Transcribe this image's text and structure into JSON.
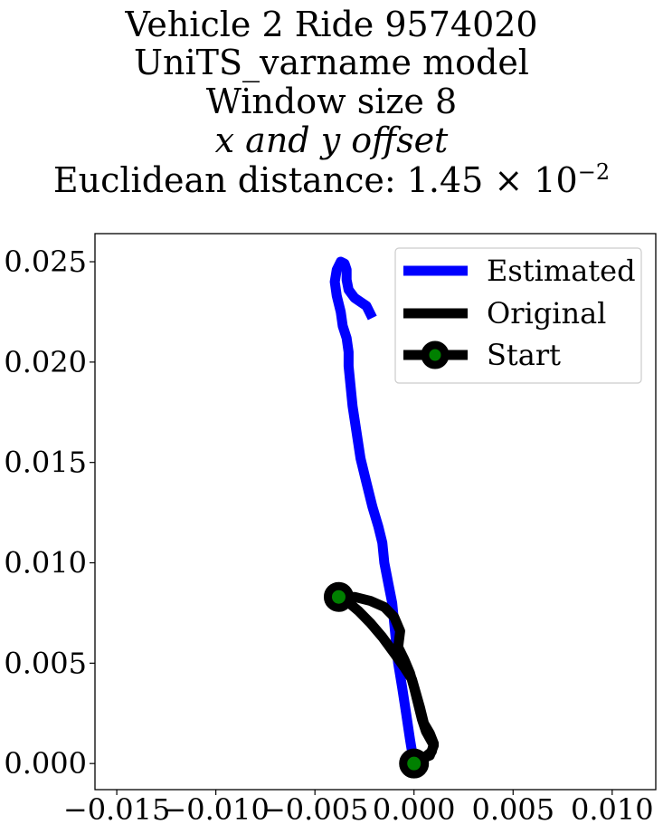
{
  "title_lines": [
    "Vehicle 2 Ride 9574020",
    "UniTS_varname model",
    "Window size 8",
    "x and y offset",
    "Euclidean distance: 1.45 × 10",
    "−2"
  ],
  "chart_data": {
    "type": "line",
    "title": "Vehicle 2 Ride 9574020 UniTS_varname model Window size 8 x and y offset Euclidean distance: 1.45 × 10^−2",
    "xlabel": "",
    "ylabel": "",
    "xlim": [
      -0.0161,
      0.0122
    ],
    "ylim": [
      -0.0013,
      0.0264
    ],
    "x_ticks": [
      -0.015,
      -0.01,
      -0.005,
      0.0,
      0.005,
      0.01
    ],
    "x_tick_labels": [
      "−0.015",
      "−0.010",
      "−0.005",
      "0.000",
      "0.005",
      "0.010"
    ],
    "y_ticks": [
      0.0,
      0.005,
      0.01,
      0.015,
      0.02,
      0.025
    ],
    "y_tick_labels": [
      "0.000",
      "0.005",
      "0.010",
      "0.015",
      "0.020",
      "0.025"
    ],
    "grid": false,
    "legend_position": "upper right",
    "legend": [
      "Estimated",
      "Original",
      "Start"
    ],
    "series": [
      {
        "name": "Estimated",
        "color": "#0000ff",
        "points": [
          [
            0.0,
            0.0
          ],
          [
            -0.0002,
            0.0012
          ],
          [
            -0.0004,
            0.0025
          ],
          [
            -0.0006,
            0.0038
          ],
          [
            -0.0008,
            0.005
          ],
          [
            -0.0009,
            0.006
          ],
          [
            -0.001,
            0.007
          ],
          [
            -0.0011,
            0.008
          ],
          [
            -0.0013,
            0.009
          ],
          [
            -0.0015,
            0.01
          ],
          [
            -0.0016,
            0.011
          ],
          [
            -0.0018,
            0.0118
          ],
          [
            -0.0021,
            0.0128
          ],
          [
            -0.0024,
            0.014
          ],
          [
            -0.0027,
            0.0152
          ],
          [
            -0.0029,
            0.0165
          ],
          [
            -0.0031,
            0.0178
          ],
          [
            -0.0032,
            0.0188
          ],
          [
            -0.0033,
            0.0198
          ],
          [
            -0.0033,
            0.0205
          ],
          [
            -0.0034,
            0.0212
          ],
          [
            -0.0036,
            0.0218
          ],
          [
            -0.0037,
            0.0225
          ],
          [
            -0.0039,
            0.0233
          ],
          [
            -0.004,
            0.024
          ],
          [
            -0.0039,
            0.0246
          ],
          [
            -0.0037,
            0.025
          ],
          [
            -0.0035,
            0.0249
          ],
          [
            -0.0034,
            0.0246
          ],
          [
            -0.0034,
            0.0241
          ],
          [
            -0.0033,
            0.0236
          ],
          [
            -0.003,
            0.0232
          ],
          [
            -0.0027,
            0.023
          ],
          [
            -0.0024,
            0.0228
          ],
          [
            -0.0021,
            0.0222
          ]
        ]
      },
      {
        "name": "Original",
        "color": "#000000",
        "points": [
          [
            0.0,
            0.0
          ],
          [
            0.0004,
            0.0002
          ],
          [
            0.0009,
            0.0006
          ],
          [
            0.001,
            0.001
          ],
          [
            0.0008,
            0.0015
          ],
          [
            0.0005,
            0.002
          ],
          [
            0.0003,
            0.0028
          ],
          [
            0.0001,
            0.0035
          ],
          [
            -0.0001,
            0.0042
          ],
          [
            -0.0005,
            0.0048
          ],
          [
            -0.001,
            0.0055
          ],
          [
            -0.0016,
            0.0063
          ],
          [
            -0.0022,
            0.007
          ],
          [
            -0.0028,
            0.0076
          ],
          [
            -0.0034,
            0.0081
          ],
          [
            -0.0039,
            0.0083
          ],
          [
            -0.003,
            0.0083
          ],
          [
            -0.0022,
            0.0081
          ],
          [
            -0.0015,
            0.0078
          ],
          [
            -0.001,
            0.0073
          ],
          [
            -0.0007,
            0.0066
          ],
          [
            -0.0008,
            0.0058
          ],
          [
            -0.0005,
            0.0052
          ],
          [
            -0.0002,
            0.0045
          ],
          [
            0.0,
            0.0038
          ],
          [
            0.0002,
            0.003
          ],
          [
            0.0004,
            0.0022
          ],
          [
            0.0006,
            0.0016
          ],
          [
            0.001,
            0.0009
          ],
          [
            0.0008,
            0.0004
          ],
          [
            0.0003,
            0.0002
          ],
          [
            0.0,
            0.0
          ]
        ]
      },
      {
        "name": "Start",
        "color": "#000000",
        "marker_color": "#008000",
        "points": [
          [
            0.0,
            0.0
          ],
          [
            -0.0038,
            0.0083
          ]
        ]
      }
    ]
  }
}
